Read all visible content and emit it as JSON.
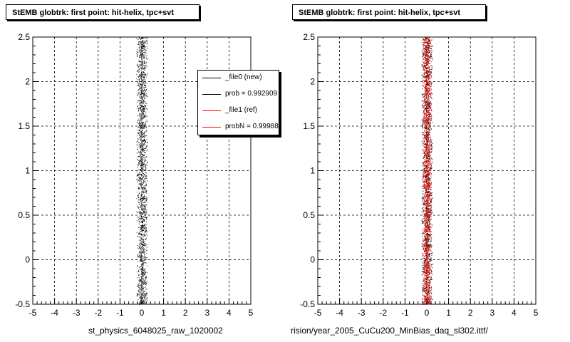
{
  "colors": {
    "new": "#000000",
    "ref": "#ff0000",
    "grid": "#000000"
  },
  "legend": {
    "items": [
      {
        "label": "_file0 (new)",
        "color": "#000000"
      },
      {
        "label": "prob = 0.992909",
        "color": "#000000"
      },
      {
        "label": "_file1 (ref)",
        "color": "#ff0000"
      },
      {
        "label": "probN = 0.999886",
        "color": "#ff0000"
      }
    ]
  },
  "footnote": "",
  "chart_data": [
    {
      "type": "scatter",
      "title": "StEMB globtrk: first point: hit-helix, tpc+svt",
      "xlabel": "st_physics_6048025_raw_1020002",
      "ylabel": "",
      "xlim": [
        -5,
        5
      ],
      "ylim": [
        -0.5,
        2.5
      ],
      "xticks": [
        "-5",
        "-4",
        "-3",
        "-2",
        "-1",
        "0",
        "1",
        "2",
        "3",
        "4",
        "5"
      ],
      "yticks": [
        "-0.5",
        "0",
        "0.5",
        "1",
        "1.5",
        "2",
        "2.5"
      ],
      "grid": true,
      "legend_position": "top-right",
      "series": [
        {
          "color": "#000000",
          "x_center": 0.0,
          "x_width": 0.35,
          "y_range": [
            -0.5,
            2.5
          ]
        }
      ]
    },
    {
      "type": "scatter",
      "title": "StEMB globtrk: first point: hit-helix, tpc+svt",
      "xlabel": "rision/year_2005_CuCu200_MinBias_daq_sl302.ittf/",
      "ylabel": "",
      "xlim": [
        -5,
        5
      ],
      "ylim": [
        -0.5,
        2.5
      ],
      "xticks": [
        "-5",
        "-4",
        "-3",
        "-2",
        "-1",
        "0",
        "1",
        "2",
        "3",
        "4",
        "5"
      ],
      "yticks": [
        "-0.5",
        "0",
        "0.5",
        "1",
        "1.5",
        "2",
        "2.5"
      ],
      "grid": true,
      "legend_position": "none",
      "series": [
        {
          "color": "#000000",
          "x_center": 0.0,
          "x_width": 0.35,
          "y_range": [
            -0.5,
            2.5
          ]
        },
        {
          "color": "#ff0000",
          "x_center": 0.0,
          "x_width": 0.3,
          "y_range": [
            -0.5,
            2.5
          ]
        }
      ]
    }
  ]
}
